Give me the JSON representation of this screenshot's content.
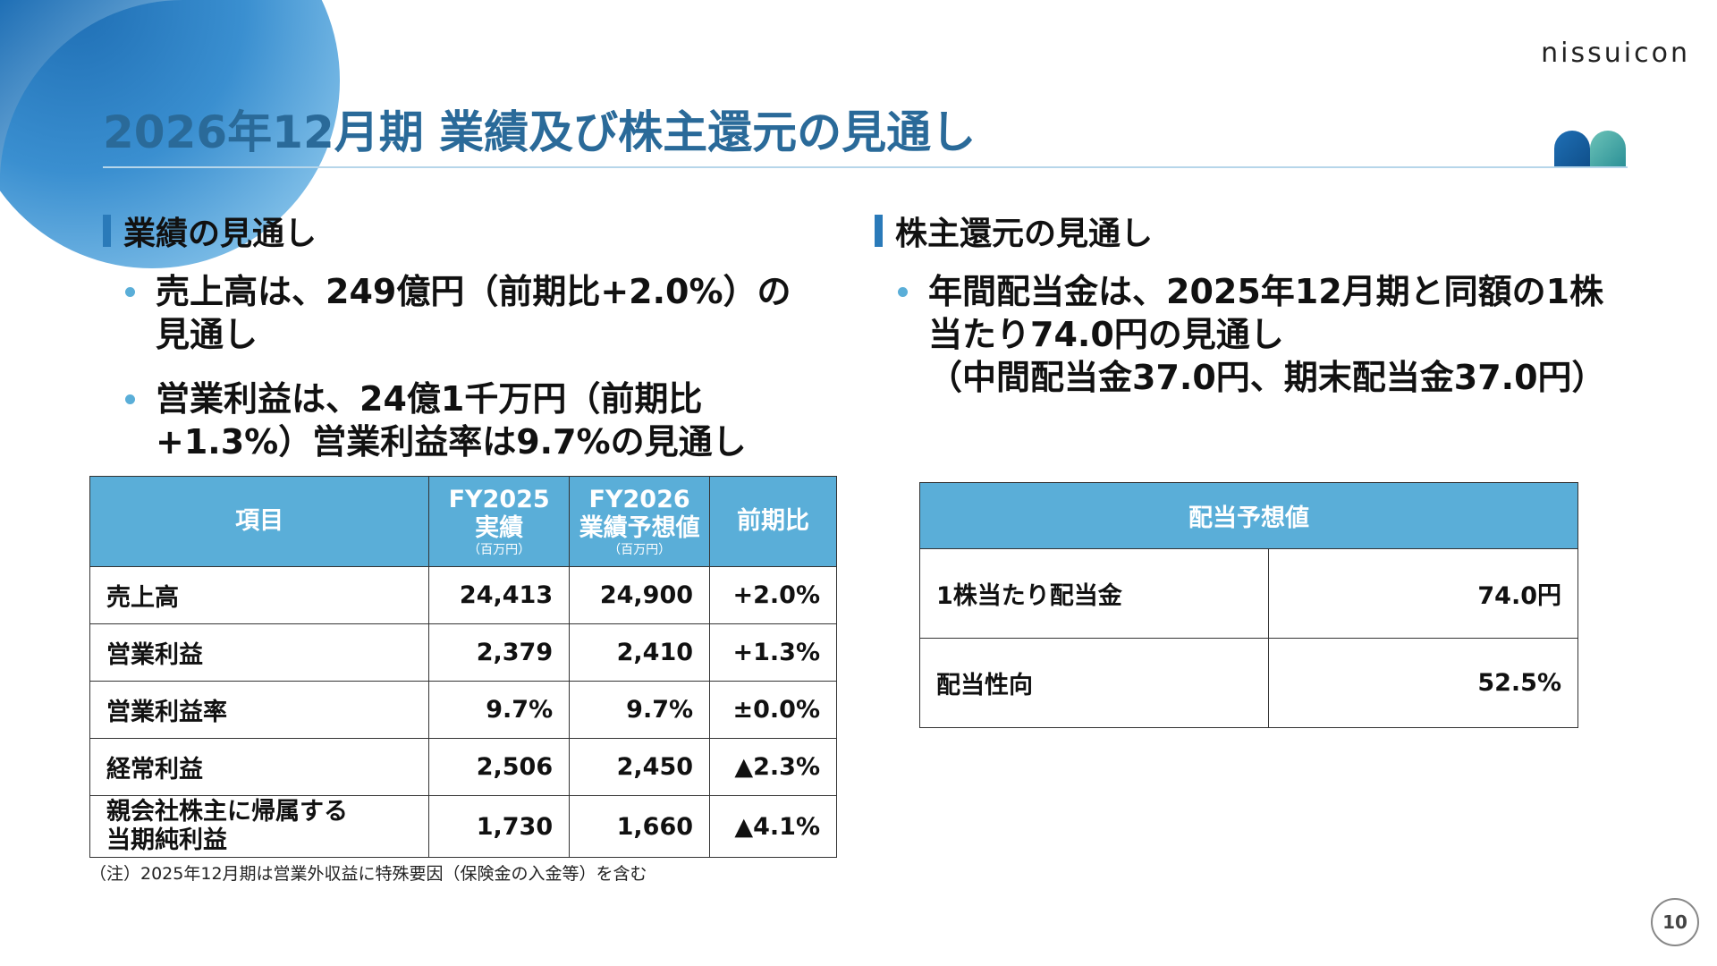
{
  "brand": {
    "name": "nissuicon"
  },
  "title": "2026年12月期 業績及び株主還元の見通し",
  "left": {
    "heading": "業績の見通し",
    "bullets": [
      {
        "line1": "売上高は、249億円（前期比+2.0%）の",
        "line2": "見通し"
      },
      {
        "line1": "営業利益は、24億1千万円（前期比",
        "line2": "+1.3%）営業利益率は9.7%の見通し"
      }
    ],
    "table": {
      "headers": {
        "item": "項目",
        "fy2025_line1": "FY2025",
        "fy2025_line2": "実績",
        "fy2025_unit": "（百万円）",
        "fy2026_line1": "FY2026",
        "fy2026_line2": "業績予想値",
        "fy2026_unit": "（百万円）",
        "yoy": "前期比"
      },
      "rows": [
        {
          "label": "売上高",
          "fy2025": "24,413",
          "fy2026": "24,900",
          "yoy": "+2.0%"
        },
        {
          "label": "営業利益",
          "fy2025": "2,379",
          "fy2026": "2,410",
          "yoy": "+1.3%"
        },
        {
          "label": "営業利益率",
          "fy2025": "9.7%",
          "fy2026": "9.7%",
          "yoy": "±0.0%"
        },
        {
          "label": "経常利益",
          "fy2025": "2,506",
          "fy2026": "2,450",
          "yoy": "▲2.3%"
        },
        {
          "label_line1": "親会社株主に帰属する",
          "label_line2": "当期純利益",
          "fy2025": "1,730",
          "fy2026": "1,660",
          "yoy": "▲4.1%"
        }
      ]
    },
    "note": "（注）2025年12月期は営業外収益に特殊要因（保険金の入金等）を含む"
  },
  "right": {
    "heading": "株主還元の見通し",
    "bullet": {
      "line1": "年間配当金は、2025年12月期と同額の1株",
      "line2": "当たり74.0円の見通し",
      "line3": "（中間配当金37.0円、期末配当金37.0円）"
    },
    "table": {
      "header": "配当予想値",
      "rows": [
        {
          "label": "1株当たり配当金",
          "value": "74.0円"
        },
        {
          "label": "配当性向",
          "value": "52.5%"
        }
      ]
    }
  },
  "page_number": "10",
  "colors": {
    "title": "#2a6a99",
    "accent": "#5aaed8",
    "bar": "#2a7ab9"
  }
}
